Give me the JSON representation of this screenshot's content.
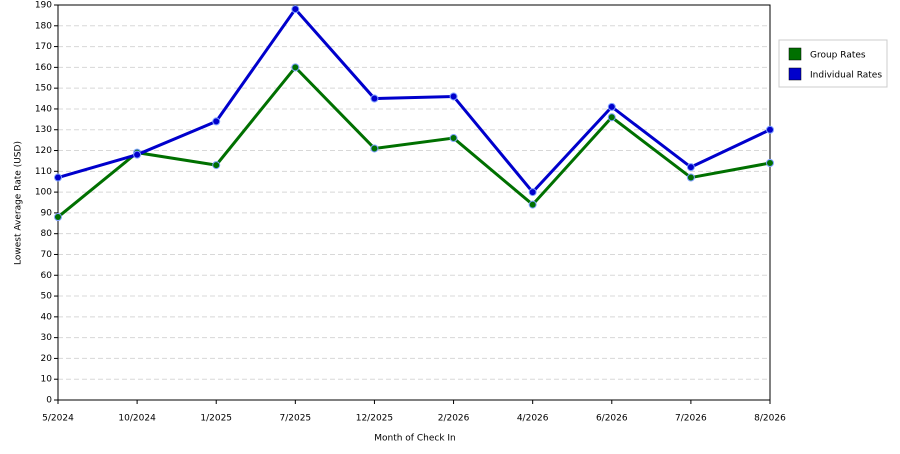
{
  "chart_data": {
    "type": "line",
    "x_label": "Month of Check In",
    "y_label": "Lowest Average Rate (USD)",
    "categories": [
      "5/2024",
      "10/2024",
      "1/2025",
      "7/2025",
      "12/2025",
      "2/2026",
      "4/2026",
      "6/2026",
      "7/2026",
      "8/2026"
    ],
    "series": [
      {
        "name": "Group Rates",
        "color": "#007000",
        "values": [
          88,
          119,
          113,
          160,
          121,
          126,
          94,
          136,
          107,
          114
        ]
      },
      {
        "name": "Individual Rates",
        "color": "#0000cc",
        "values": [
          107,
          118,
          134,
          188,
          145,
          146,
          100,
          141,
          112,
          130
        ]
      }
    ],
    "ylim": [
      0,
      190
    ],
    "yticks": [
      0,
      10,
      20,
      30,
      40,
      50,
      60,
      70,
      80,
      90,
      100,
      110,
      120,
      130,
      140,
      150,
      160,
      170,
      180,
      190
    ],
    "grid": true,
    "legend": "right"
  }
}
